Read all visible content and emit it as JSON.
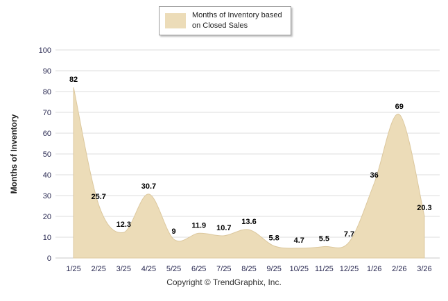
{
  "legend": {
    "lines": [
      "Months of Inventory based",
      "on Closed Sales"
    ]
  },
  "footer": "Copyright © TrendGraphix, Inc.",
  "colors": {
    "area_fill": "#ECDCB8",
    "area_stroke": "#DCC89E",
    "grid": "#DEDEDE",
    "baseline": "#C9C9C9",
    "tick_text": "#26264F",
    "label_text": "#000000"
  },
  "chart_data": {
    "type": "area",
    "categories": [
      "1/25",
      "2/25",
      "3/25",
      "4/25",
      "5/25",
      "6/25",
      "7/25",
      "8/25",
      "9/25",
      "10/25",
      "11/25",
      "12/25",
      "1/26",
      "2/26",
      "3/26"
    ],
    "values": [
      82,
      25.7,
      12.3,
      30.7,
      9,
      11.9,
      10.7,
      13.6,
      5.8,
      4.7,
      5.5,
      7.7,
      36,
      69,
      20.3
    ],
    "series_name": "Months of Inventory based on Closed Sales",
    "title": "",
    "xlabel": "",
    "ylabel": "Months of Inventory",
    "ylim": [
      0,
      100
    ],
    "ytick_step": 10,
    "grid": true,
    "legend_position": "top-center"
  }
}
